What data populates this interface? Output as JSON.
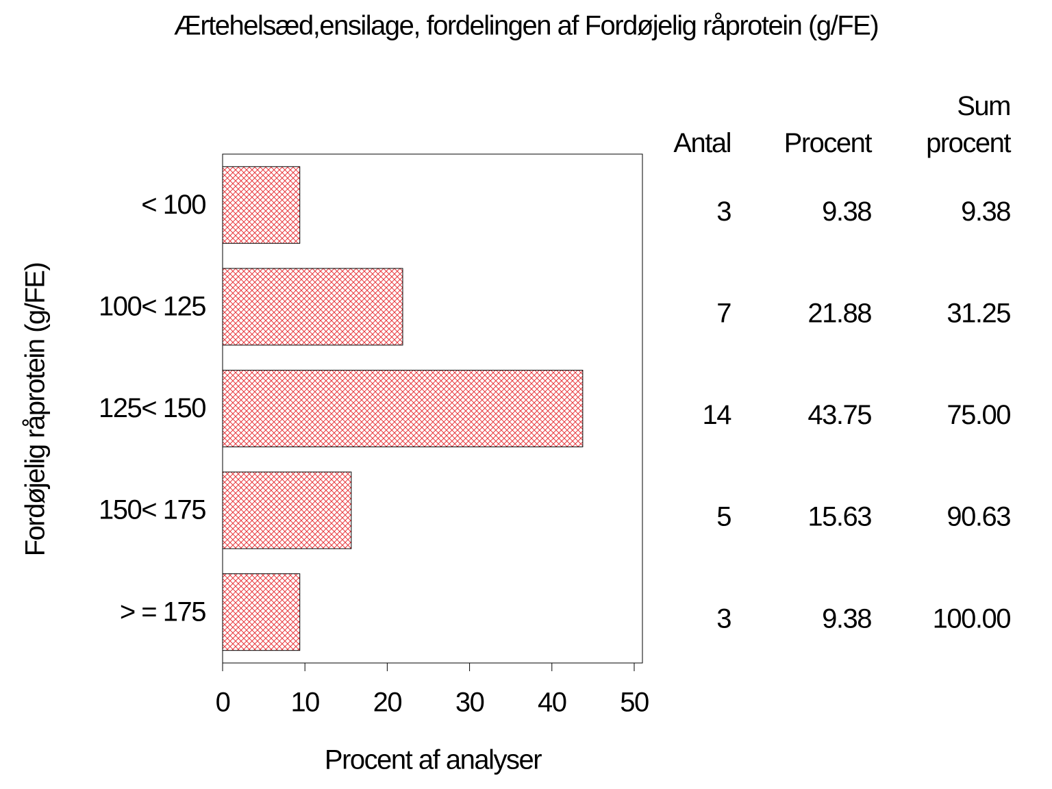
{
  "chart_data": {
    "type": "bar",
    "orientation": "horizontal",
    "title": "Ærtehelsæd,ensilage,  fordelingen  af  Fordøjelig  råprotein  (g/FE)",
    "xlabel": "Procent  af  analyser",
    "ylabel": "Fordøjelig  råprotein  (g/FE)",
    "categories": [
      "< 100",
      "100< 125",
      "125< 150",
      "150< 175",
      "> = 175"
    ],
    "values": [
      9.38,
      21.88,
      43.75,
      15.63,
      9.38
    ],
    "color": "#e8383d",
    "xlim": [
      0,
      51
    ],
    "xticks": [
      0,
      10,
      20,
      30,
      40,
      50
    ],
    "table": {
      "headers": [
        "Antal",
        "Procent",
        "Sum procent"
      ],
      "rows": [
        [
          "3",
          "9.38",
          "9.38"
        ],
        [
          "7",
          "21.88",
          "31.25"
        ],
        [
          "14",
          "43.75",
          "75.00"
        ],
        [
          "5",
          "15.63",
          "90.63"
        ],
        [
          "3",
          "9.38",
          "100.00"
        ]
      ]
    }
  }
}
